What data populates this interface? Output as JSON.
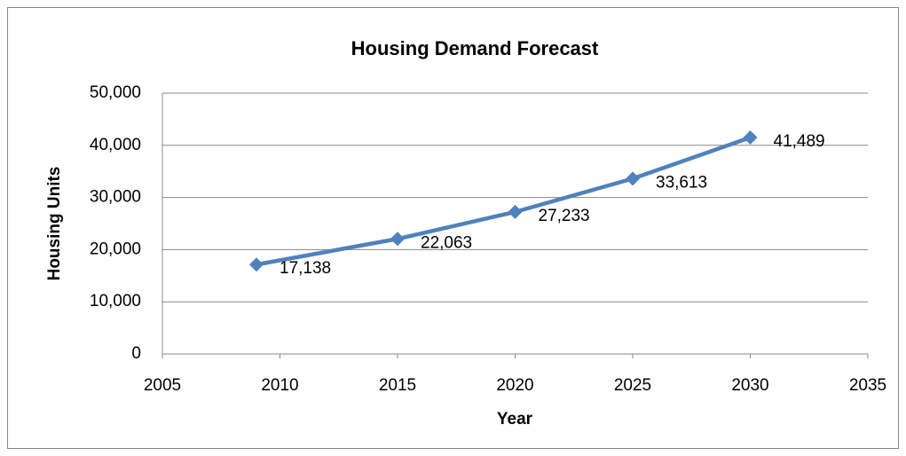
{
  "chart_data": {
    "type": "line",
    "title": "Housing Demand Forecast",
    "x_label": "Year",
    "y_label": "Housing Units",
    "x": [
      2009,
      2015,
      2020,
      2025,
      2030
    ],
    "values": [
      17138,
      22063,
      27233,
      33613,
      41489
    ],
    "value_labels": [
      "17,138",
      "22,063",
      "27,233",
      "33,613",
      "41,489"
    ],
    "color": "#4f81bd",
    "xlim": [
      2005,
      2035
    ],
    "xticks": [
      2005,
      2010,
      2015,
      2020,
      2025,
      2030,
      2035
    ],
    "ylim": [
      0,
      50000
    ],
    "yticks": [
      0,
      {
        "value": 10000,
        "label": "10,000"
      },
      {
        "value": 20000,
        "label": "20,000"
      },
      {
        "value": 30000,
        "label": "30,000"
      },
      {
        "value": 40000,
        "label": "40,000"
      },
      {
        "value": 50000,
        "label": "50,000"
      }
    ],
    "grid": true
  }
}
